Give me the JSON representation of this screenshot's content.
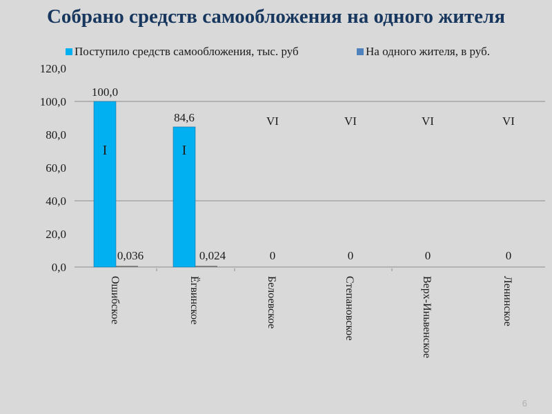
{
  "page_number": "6",
  "chart_data": {
    "type": "bar",
    "title": "Собрано средств самообложения на одного жителя",
    "categories": [
      "Ошибское",
      "Ёгвинское",
      "Белоевское",
      "Степановское",
      "Верх-Иньвенское",
      "Ленинское"
    ],
    "series": [
      {
        "name": "Поступило средств самообложения, тыс. руб",
        "color": "#00b0f0",
        "values": [
          100.0,
          84.6,
          0,
          0,
          0,
          0
        ],
        "labels": [
          "100,0",
          "84,6",
          "VI",
          "VI",
          "VI",
          "VI"
        ]
      },
      {
        "name": "На одного жителя, в руб.",
        "color": "#4f81bd",
        "values": [
          0.036,
          0.024,
          0,
          0,
          0,
          0
        ],
        "labels": [
          "0,036",
          "0,024",
          "0",
          "0",
          "0",
          "0"
        ]
      }
    ],
    "bar_annotations": [
      "I",
      "I"
    ],
    "yticks": [
      "0,0",
      "20,0",
      "40,0",
      "60,0",
      "80,0",
      "100,0",
      "120,0"
    ],
    "ylim": [
      0,
      120
    ],
    "xlabel": "",
    "ylabel": "",
    "legend": "top",
    "grid": true
  }
}
